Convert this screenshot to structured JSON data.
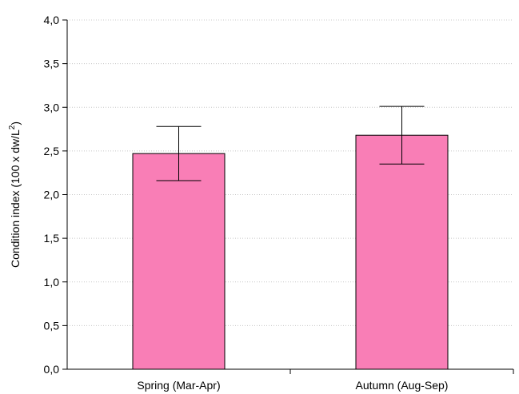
{
  "chart_data": {
    "type": "bar",
    "title": "",
    "xlabel": "",
    "ylabel": "Condition index (100 x dw/L",
    "ylabel_sup": "2",
    "ylabel_suffix": ")",
    "categories": [
      "Spring (Mar-Apr)",
      "Autumn (Aug-Sep)"
    ],
    "values": [
      2.47,
      2.68
    ],
    "error_low": [
      2.16,
      2.35
    ],
    "error_high": [
      2.78,
      3.01
    ],
    "ylim": [
      0,
      4.0
    ],
    "y_ticks": [
      0,
      0.5,
      1.0,
      1.5,
      2.0,
      2.5,
      3.0,
      3.5,
      4.0
    ],
    "y_tick_labels": [
      "0,0",
      "0,5",
      "1,0",
      "1,5",
      "2,0",
      "2,5",
      "3,0",
      "3,5",
      "4,0"
    ],
    "grid": "horizontal dotted",
    "legend": "none",
    "colors": {
      "bar_fill": "#f97eb6",
      "bar_stroke": "#000000",
      "grid": "#c8c8c8"
    }
  }
}
